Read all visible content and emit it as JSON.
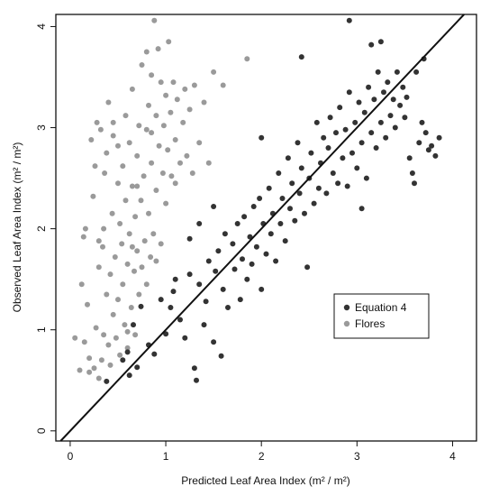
{
  "chart_data": {
    "type": "scatter",
    "xlabel": "Predicted Leaf Area Index  (m² / m²)",
    "ylabel": "Observed Leaf Area Index  (m² / m²)",
    "xlim": [
      -0.15,
      4.25
    ],
    "ylim": [
      -0.1,
      4.12
    ],
    "xticks": [
      0,
      1,
      2,
      3,
      4
    ],
    "yticks": [
      0,
      1,
      2,
      3,
      4
    ],
    "reference_line": "1:1",
    "grid": false,
    "legend_position": "center-right",
    "series": [
      {
        "name": "Equation 4",
        "color": "#333333",
        "points": [
          [
            0.38,
            0.49
          ],
          [
            0.55,
            0.7
          ],
          [
            0.62,
            0.55
          ],
          [
            0.7,
            0.63
          ],
          [
            0.6,
            0.78
          ],
          [
            0.66,
            1.05
          ],
          [
            0.74,
            1.23
          ],
          [
            0.82,
            0.85
          ],
          [
            0.88,
            0.76
          ],
          [
            0.95,
            1.3
          ],
          [
            1.0,
            0.96
          ],
          [
            1.05,
            1.22
          ],
          [
            1.08,
            1.38
          ],
          [
            1.1,
            1.5
          ],
          [
            1.15,
            1.1
          ],
          [
            1.2,
            0.92
          ],
          [
            1.25,
            1.55
          ],
          [
            1.3,
            0.62
          ],
          [
            1.32,
            0.5
          ],
          [
            1.35,
            1.45
          ],
          [
            1.4,
            1.05
          ],
          [
            1.42,
            1.28
          ],
          [
            1.45,
            1.68
          ],
          [
            1.5,
            0.88
          ],
          [
            1.52,
            1.58
          ],
          [
            1.55,
            1.78
          ],
          [
            1.58,
            0.74
          ],
          [
            1.6,
            1.4
          ],
          [
            1.62,
            1.95
          ],
          [
            1.65,
            1.22
          ],
          [
            1.7,
            1.85
          ],
          [
            1.72,
            1.6
          ],
          [
            1.75,
            2.05
          ],
          [
            1.78,
            1.3
          ],
          [
            1.8,
            1.7
          ],
          [
            1.82,
            2.12
          ],
          [
            1.85,
            1.5
          ],
          [
            1.88,
            1.92
          ],
          [
            1.9,
            1.65
          ],
          [
            1.92,
            2.22
          ],
          [
            1.95,
            1.82
          ],
          [
            1.98,
            2.3
          ],
          [
            2.0,
            1.4
          ],
          [
            2.02,
            2.05
          ],
          [
            2.05,
            1.75
          ],
          [
            2.08,
            2.4
          ],
          [
            2.1,
            1.95
          ],
          [
            2.12,
            2.15
          ],
          [
            2.15,
            1.68
          ],
          [
            2.18,
            2.55
          ],
          [
            2.2,
            2.05
          ],
          [
            2.22,
            2.3
          ],
          [
            2.25,
            1.88
          ],
          [
            2.28,
            2.7
          ],
          [
            2.3,
            2.2
          ],
          [
            2.32,
            2.45
          ],
          [
            2.35,
            2.08
          ],
          [
            2.38,
            2.85
          ],
          [
            2.4,
            2.35
          ],
          [
            2.42,
            2.6
          ],
          [
            2.45,
            2.15
          ],
          [
            2.48,
            1.62
          ],
          [
            2.5,
            2.5
          ],
          [
            2.52,
            2.75
          ],
          [
            2.55,
            2.25
          ],
          [
            2.58,
            3.05
          ],
          [
            2.6,
            2.4
          ],
          [
            2.62,
            2.65
          ],
          [
            2.65,
            2.9
          ],
          [
            2.68,
            2.35
          ],
          [
            2.7,
            2.8
          ],
          [
            2.72,
            3.1
          ],
          [
            2.75,
            2.55
          ],
          [
            2.78,
            2.95
          ],
          [
            2.8,
            2.45
          ],
          [
            2.82,
            3.2
          ],
          [
            2.85,
            2.7
          ],
          [
            2.88,
            2.98
          ],
          [
            2.9,
            2.42
          ],
          [
            2.92,
            3.35
          ],
          [
            2.95,
            2.75
          ],
          [
            2.98,
            3.05
          ],
          [
            3.0,
            2.6
          ],
          [
            3.02,
            3.25
          ],
          [
            3.05,
            2.85
          ],
          [
            3.08,
            3.15
          ],
          [
            3.1,
            2.5
          ],
          [
            3.12,
            3.4
          ],
          [
            3.15,
            2.95
          ],
          [
            3.18,
            3.28
          ],
          [
            3.2,
            2.8
          ],
          [
            3.22,
            3.55
          ],
          [
            3.25,
            3.05
          ],
          [
            3.28,
            3.35
          ],
          [
            3.3,
            2.9
          ],
          [
            3.32,
            3.45
          ],
          [
            3.35,
            3.12
          ],
          [
            3.38,
            3.28
          ],
          [
            3.4,
            3.0
          ],
          [
            3.42,
            3.55
          ],
          [
            3.45,
            3.22
          ],
          [
            3.48,
            3.4
          ],
          [
            3.5,
            3.1
          ],
          [
            3.52,
            3.3
          ],
          [
            3.55,
            2.7
          ],
          [
            3.58,
            2.55
          ],
          [
            3.6,
            2.45
          ],
          [
            3.62,
            3.55
          ],
          [
            3.65,
            2.85
          ],
          [
            3.68,
            3.05
          ],
          [
            3.72,
            2.95
          ],
          [
            3.75,
            2.78
          ],
          [
            3.78,
            2.82
          ],
          [
            3.82,
            2.72
          ],
          [
            3.86,
            2.9
          ],
          [
            3.7,
            3.68
          ],
          [
            2.42,
            3.7
          ],
          [
            2.92,
            4.06
          ],
          [
            3.15,
            3.82
          ],
          [
            3.25,
            3.85
          ],
          [
            3.05,
            2.2
          ],
          [
            2.0,
            2.9
          ],
          [
            1.35,
            2.05
          ],
          [
            1.5,
            2.22
          ],
          [
            1.25,
            1.9
          ]
        ]
      },
      {
        "name": "Flores",
        "color": "#9a9a9a",
        "points": [
          [
            0.05,
            0.92
          ],
          [
            0.1,
            0.6
          ],
          [
            0.12,
            1.45
          ],
          [
            0.14,
            1.92
          ],
          [
            0.16,
            2.0
          ],
          [
            0.18,
            1.25
          ],
          [
            0.2,
            0.72
          ],
          [
            0.22,
            2.88
          ],
          [
            0.24,
            2.32
          ],
          [
            0.26,
            2.62
          ],
          [
            0.27,
            1.02
          ],
          [
            0.28,
            3.05
          ],
          [
            0.3,
            0.52
          ],
          [
            0.3,
            1.62
          ],
          [
            0.32,
            2.98
          ],
          [
            0.34,
            1.82
          ],
          [
            0.35,
            0.95
          ],
          [
            0.36,
            2.55
          ],
          [
            0.38,
            1.35
          ],
          [
            0.38,
            2.75
          ],
          [
            0.4,
            0.85
          ],
          [
            0.4,
            3.25
          ],
          [
            0.42,
            1.55
          ],
          [
            0.44,
            2.15
          ],
          [
            0.45,
            1.15
          ],
          [
            0.45,
            2.92
          ],
          [
            0.47,
            1.72
          ],
          [
            0.48,
            0.92
          ],
          [
            0.5,
            2.45
          ],
          [
            0.5,
            1.3
          ],
          [
            0.52,
            2.05
          ],
          [
            0.52,
            0.75
          ],
          [
            0.54,
            1.85
          ],
          [
            0.55,
            2.62
          ],
          [
            0.55,
            1.45
          ],
          [
            0.57,
            1.05
          ],
          [
            0.58,
            2.28
          ],
          [
            0.58,
            3.12
          ],
          [
            0.6,
            1.65
          ],
          [
            0.6,
            0.82
          ],
          [
            0.62,
            2.85
          ],
          [
            0.62,
            1.95
          ],
          [
            0.64,
            1.22
          ],
          [
            0.65,
            2.42
          ],
          [
            0.65,
            3.38
          ],
          [
            0.67,
            1.58
          ],
          [
            0.68,
            2.12
          ],
          [
            0.68,
            0.95
          ],
          [
            0.7,
            2.72
          ],
          [
            0.7,
            1.78
          ],
          [
            0.72,
            3.02
          ],
          [
            0.72,
            1.35
          ],
          [
            0.74,
            2.28
          ],
          [
            0.75,
            1.62
          ],
          [
            0.75,
            3.62
          ],
          [
            0.77,
            2.52
          ],
          [
            0.78,
            1.88
          ],
          [
            0.8,
            2.98
          ],
          [
            0.8,
            1.45
          ],
          [
            0.82,
            3.22
          ],
          [
            0.82,
            2.15
          ],
          [
            0.84,
            1.72
          ],
          [
            0.85,
            3.52
          ],
          [
            0.85,
            2.65
          ],
          [
            0.87,
            1.95
          ],
          [
            0.88,
            4.06
          ],
          [
            0.9,
            3.12
          ],
          [
            0.9,
            2.38
          ],
          [
            0.92,
            3.78
          ],
          [
            0.93,
            2.82
          ],
          [
            0.95,
            1.85
          ],
          [
            0.95,
            3.45
          ],
          [
            0.97,
            2.55
          ],
          [
            0.98,
            3.02
          ],
          [
            1.0,
            2.25
          ],
          [
            1.0,
            3.32
          ],
          [
            1.02,
            2.78
          ],
          [
            1.03,
            3.85
          ],
          [
            1.05,
            3.15
          ],
          [
            1.06,
            2.52
          ],
          [
            1.08,
            3.45
          ],
          [
            1.1,
            2.88
          ],
          [
            1.12,
            3.28
          ],
          [
            1.15,
            2.65
          ],
          [
            1.18,
            3.05
          ],
          [
            1.2,
            3.38
          ],
          [
            1.22,
            2.72
          ],
          [
            1.25,
            3.18
          ],
          [
            1.28,
            2.55
          ],
          [
            1.3,
            3.42
          ],
          [
            1.35,
            2.85
          ],
          [
            1.4,
            3.25
          ],
          [
            1.45,
            2.65
          ],
          [
            1.5,
            3.55
          ],
          [
            1.6,
            3.42
          ],
          [
            1.85,
            3.68
          ],
          [
            0.2,
            0.58
          ],
          [
            0.25,
            0.62
          ],
          [
            0.33,
            0.7
          ],
          [
            0.42,
            0.65
          ],
          [
            0.15,
            0.88
          ],
          [
            0.3,
            1.88
          ],
          [
            0.5,
            2.82
          ],
          [
            0.35,
            2.0
          ],
          [
            0.45,
            3.05
          ],
          [
            0.6,
            0.98
          ],
          [
            0.65,
            1.82
          ],
          [
            0.7,
            2.42
          ],
          [
            0.8,
            3.75
          ],
          [
            0.85,
            2.95
          ],
          [
            0.9,
            1.68
          ],
          [
            1.1,
            2.45
          ]
        ]
      }
    ]
  }
}
